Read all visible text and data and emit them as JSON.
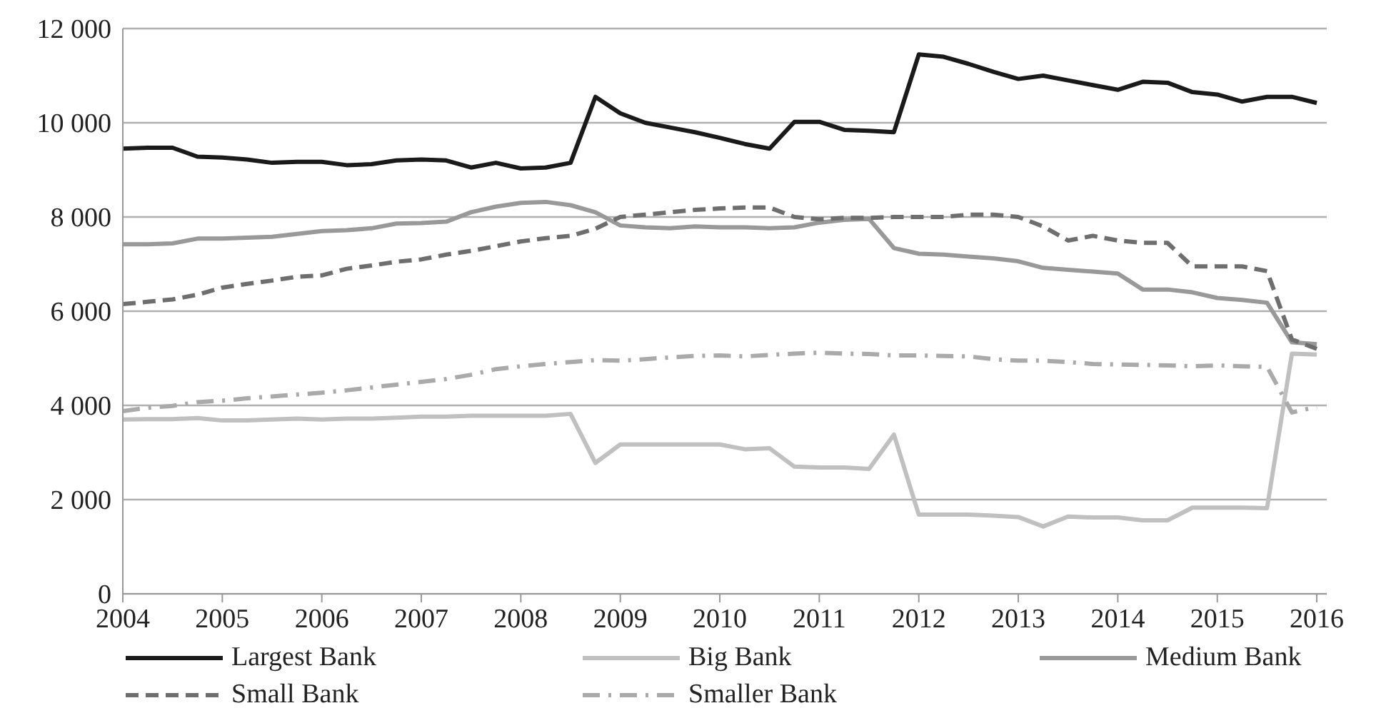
{
  "chart_data": {
    "type": "line",
    "x": [
      2004,
      2004.25,
      2004.5,
      2004.75,
      2005,
      2005.25,
      2005.5,
      2005.75,
      2006,
      2006.25,
      2006.5,
      2006.75,
      2007,
      2007.25,
      2007.5,
      2007.75,
      2008,
      2008.25,
      2008.5,
      2008.75,
      2009,
      2009.25,
      2009.5,
      2009.75,
      2010,
      2010.25,
      2010.5,
      2010.75,
      2011,
      2011.25,
      2011.5,
      2011.75,
      2012,
      2012.25,
      2012.5,
      2012.75,
      2013,
      2013.25,
      2013.5,
      2013.75,
      2014,
      2014.25,
      2014.5,
      2014.75,
      2015,
      2015.25,
      2015.5,
      2015.75,
      2016
    ],
    "series": [
      {
        "name": "Largest Bank",
        "color": "#1a1a1a",
        "line_style": "solid",
        "values": [
          9450,
          9470,
          9470,
          9280,
          9260,
          9220,
          9150,
          9170,
          9170,
          9100,
          9120,
          9200,
          9220,
          9200,
          9050,
          9150,
          9030,
          9050,
          9150,
          10550,
          10200,
          10000,
          9900,
          9800,
          9680,
          9550,
          9450,
          10020,
          10020,
          9850,
          9830,
          9800,
          11450,
          11400,
          11250,
          11080,
          10930,
          11000,
          10900,
          10800,
          10700,
          10870,
          10850,
          10650,
          10600,
          10450,
          10550,
          10550,
          10420
        ]
      },
      {
        "name": "Big Bank",
        "color": "#c0c0c0",
        "line_style": "solid",
        "values": [
          3700,
          3710,
          3710,
          3730,
          3680,
          3680,
          3700,
          3720,
          3700,
          3720,
          3720,
          3740,
          3760,
          3760,
          3780,
          3780,
          3780,
          3780,
          3820,
          2780,
          3170,
          3170,
          3170,
          3170,
          3170,
          3070,
          3090,
          2700,
          2680,
          2680,
          2650,
          3380,
          1680,
          1680,
          1680,
          1660,
          1630,
          1430,
          1640,
          1620,
          1620,
          1560,
          1560,
          1830,
          1830,
          1830,
          1820,
          5100,
          5080
        ]
      },
      {
        "name": "Medium Bank",
        "color": "#999999",
        "line_style": "solid",
        "values": [
          7420,
          7420,
          7440,
          7540,
          7540,
          7560,
          7580,
          7640,
          7700,
          7720,
          7760,
          7860,
          7870,
          7900,
          8100,
          8220,
          8300,
          8320,
          8250,
          8100,
          7820,
          7780,
          7760,
          7800,
          7780,
          7780,
          7760,
          7780,
          7880,
          7940,
          7960,
          7340,
          7220,
          7200,
          7160,
          7120,
          7060,
          6920,
          6880,
          6840,
          6800,
          6460,
          6460,
          6400,
          6280,
          6240,
          6180,
          5340,
          5300
        ]
      },
      {
        "name": "Small Bank",
        "color": "#6e6e6e",
        "line_style": "dashed",
        "values": [
          6150,
          6200,
          6250,
          6350,
          6500,
          6580,
          6650,
          6730,
          6760,
          6900,
          6970,
          7050,
          7100,
          7200,
          7280,
          7380,
          7480,
          7550,
          7600,
          7750,
          8000,
          8050,
          8100,
          8150,
          8180,
          8200,
          8200,
          8000,
          7950,
          7980,
          7980,
          8000,
          8000,
          8000,
          8050,
          8050,
          8000,
          7800,
          7500,
          7600,
          7500,
          7450,
          7450,
          6950,
          6950,
          6950,
          6850,
          5400,
          5200
        ]
      },
      {
        "name": "Smaller Bank",
        "color": "#aaaaaa",
        "line_style": "dashdot",
        "values": [
          3880,
          3950,
          3990,
          4070,
          4100,
          4150,
          4190,
          4230,
          4270,
          4320,
          4380,
          4440,
          4500,
          4560,
          4650,
          4770,
          4830,
          4880,
          4920,
          4960,
          4950,
          4980,
          5020,
          5050,
          5060,
          5040,
          5070,
          5100,
          5120,
          5100,
          5090,
          5060,
          5060,
          5050,
          5040,
          4980,
          4950,
          4950,
          4920,
          4880,
          4870,
          4860,
          4850,
          4830,
          4850,
          4830,
          4820,
          3850,
          3970
        ]
      }
    ],
    "xlim": [
      2004,
      2016.1
    ],
    "xticks": [
      2004,
      2005,
      2006,
      2007,
      2008,
      2009,
      2010,
      2011,
      2012,
      2013,
      2014,
      2015,
      2016
    ],
    "ylim": [
      0,
      12000
    ],
    "yticks": [
      0,
      {
        "value": 2000,
        "label": "2 000"
      },
      {
        "value": 4000,
        "label": "4 000"
      },
      {
        "value": 6000,
        "label": "6 000"
      },
      {
        "value": 8000,
        "label": "8 000"
      },
      {
        "value": 10000,
        "label": "10 000"
      },
      {
        "value": 12000,
        "label": "12 000"
      }
    ],
    "grid": "y",
    "legend": "bottom",
    "marker": "none"
  }
}
